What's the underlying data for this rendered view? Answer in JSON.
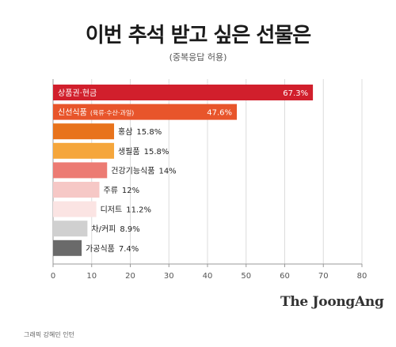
{
  "title": "이번 추석 받고 싶은 선물은",
  "subtitle": "(중복응답 허용)",
  "brand": "The JoongAng",
  "credit": "그래픽 강혜민 인턴",
  "chart_data": {
    "type": "bar",
    "orientation": "horizontal",
    "title": "이번 추석 받고 싶은 선물은",
    "subtitle": "(중복응답 허용)",
    "unit": "%",
    "xlim": [
      0,
      80
    ],
    "xticks": [
      0,
      10,
      20,
      30,
      40,
      50,
      60,
      70,
      80
    ],
    "grid": true,
    "legend": "none",
    "categories": [
      "상품권·현금",
      "신선식품",
      "홍삼",
      "생필품",
      "건강기능식품",
      "주류",
      "디저트",
      "차/커피",
      "가공식품"
    ],
    "notes": [
      "",
      "(육류·수산·과일)",
      "",
      "",
      "",
      "",
      "",
      "",
      ""
    ],
    "value_labels": [
      "67.3%",
      "47.6%",
      "15.8%",
      "15.8%",
      "14%",
      "12%",
      "11.2%",
      "8.9%",
      "7.4%"
    ],
    "values": [
      67.3,
      47.6,
      15.8,
      15.8,
      14,
      12,
      11.2,
      8.9,
      7.4
    ],
    "colors": [
      "#d11f2c",
      "#e8552b",
      "#e8731c",
      "#f5a63c",
      "#ec7b73",
      "#f6c8c6",
      "#fbe4e3",
      "#d0d0d0",
      "#6a6a6a"
    ],
    "label_inside": [
      true,
      true,
      false,
      false,
      false,
      false,
      false,
      false,
      false
    ]
  }
}
